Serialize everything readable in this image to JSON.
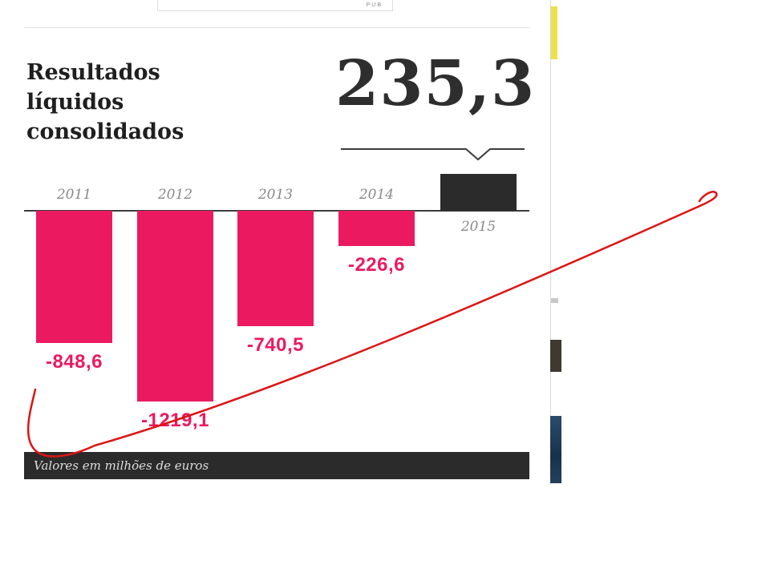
{
  "pub": {
    "label": "PUB"
  },
  "header": {
    "title": "Resultados líquidos consolidados",
    "title_lines": [
      "Resultados",
      "líquidos",
      "consolidados"
    ]
  },
  "highlight": {
    "big_number": "235,3"
  },
  "footer": {
    "note": "Valores em milhões de euros"
  },
  "colors": {
    "negative_bar": "#EB1A60",
    "positive_bar": "#2B2B2B",
    "axis": "#3C3C3C",
    "year_label": "#8A8A8A",
    "footer_bg": "#2B2B2B",
    "annotation": "#DD1414"
  },
  "chart_data": {
    "type": "bar",
    "title": "Resultados líquidos consolidados",
    "categories": [
      "2011",
      "2012",
      "2013",
      "2014",
      "2015"
    ],
    "values": [
      -848.6,
      -1219.1,
      -740.5,
      -226.6,
      235.3
    ],
    "value_labels": [
      "-848,6",
      "-1219,1",
      "-740,5",
      "-226,6",
      "235,3"
    ],
    "unit_note": "Valores em milhões de euros",
    "xlabel": "",
    "ylabel": "",
    "ylim": [
      -1300,
      300
    ],
    "grid": false,
    "legend": false,
    "bar_colors": {
      "negative": "#EB1A60",
      "positive": "#2B2B2B"
    },
    "highlight_note": "2015 positive result 235,3 shown as large headline number pointing at the 2015 bar"
  }
}
